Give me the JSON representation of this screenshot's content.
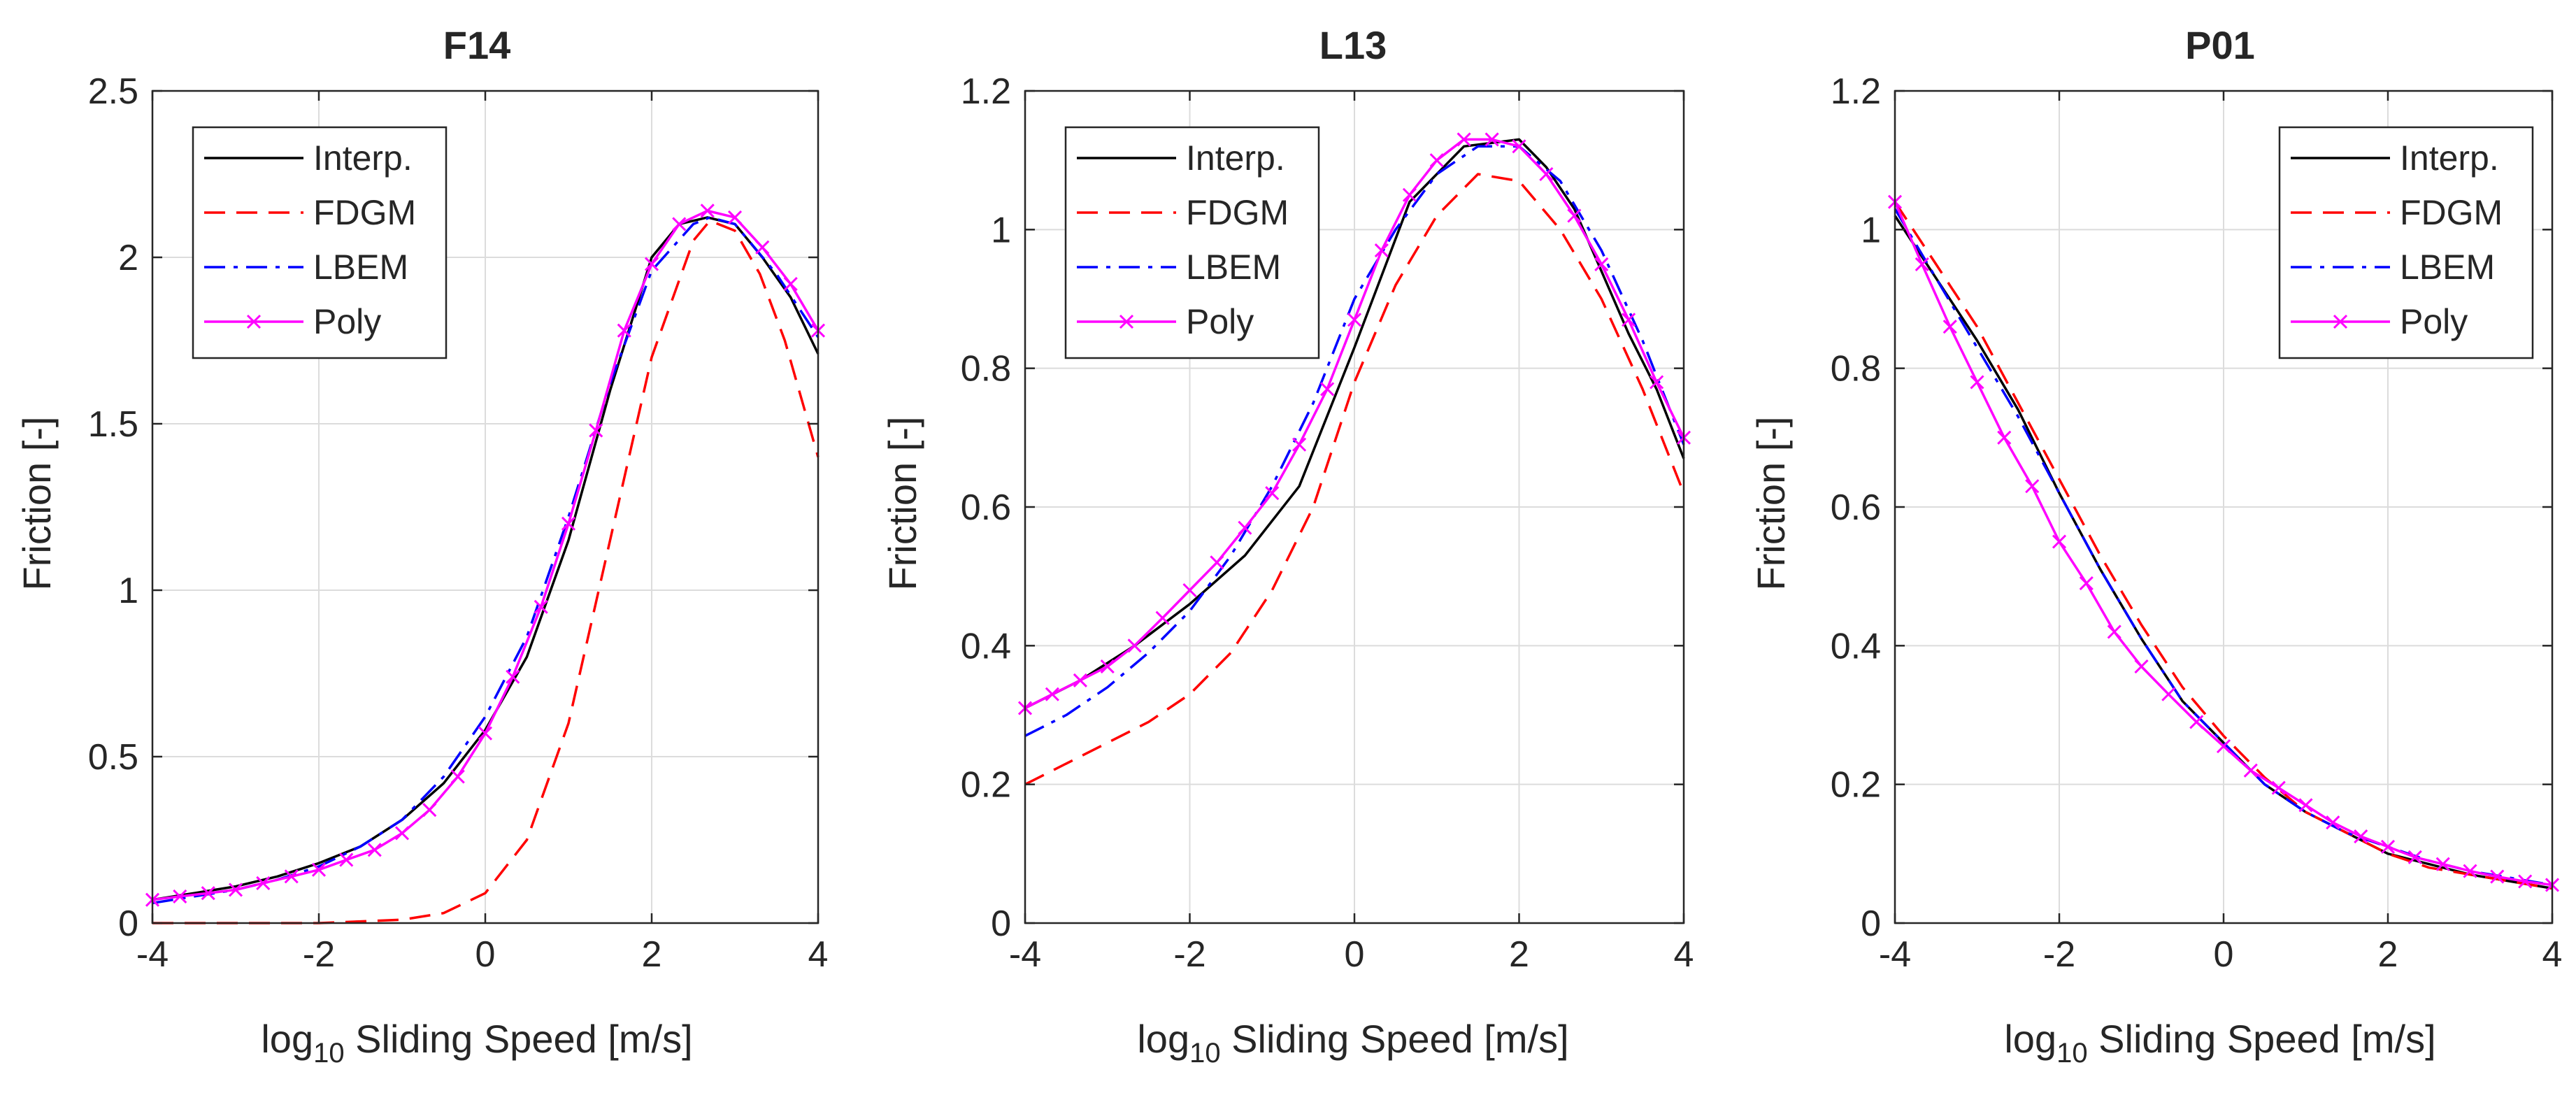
{
  "chart_data": [
    {
      "type": "line",
      "title": "F14",
      "xlabel_prefix": "log",
      "xlabel_sub": "10",
      "xlabel_suffix": " Sliding Speed [m/s]",
      "ylabel": "Friction [-]",
      "xlim": [
        -4,
        4
      ],
      "ylim": [
        0,
        2.5
      ],
      "xticks": [
        -4,
        -2,
        0,
        2,
        4
      ],
      "yticks": [
        0,
        0.5,
        1,
        1.5,
        2,
        2.5
      ],
      "xtick_labels": [
        "-4",
        "-2",
        "0",
        "2",
        "4"
      ],
      "ytick_labels": [
        "0",
        "0.5",
        "1",
        "1.5",
        "2",
        "2.5"
      ],
      "grid": true,
      "legend_position": "top-left",
      "series": [
        {
          "name": "Interp.",
          "color": "#000000",
          "dash": "solid",
          "marker": "none",
          "x": [
            -4,
            -3.5,
            -3,
            -2.5,
            -2,
            -1.5,
            -1,
            -0.5,
            0,
            0.5,
            1,
            1.5,
            2,
            2.33,
            2.67,
            3,
            3.33,
            3.67,
            4
          ],
          "y": [
            0.07,
            0.09,
            0.11,
            0.14,
            0.18,
            0.23,
            0.31,
            0.42,
            0.58,
            0.8,
            1.15,
            1.6,
            2.0,
            2.1,
            2.12,
            2.1,
            2.0,
            1.88,
            1.71
          ]
        },
        {
          "name": "FDGM",
          "color": "#ff0000",
          "dash": "dashed",
          "marker": "none",
          "x": [
            -4,
            -3,
            -2,
            -1.5,
            -1,
            -0.5,
            0,
            0.5,
            1,
            1.5,
            2,
            2.5,
            2.7,
            3,
            3.3,
            3.6,
            4
          ],
          "y": [
            0.0,
            0.0,
            0.0,
            0.005,
            0.01,
            0.03,
            0.09,
            0.25,
            0.6,
            1.15,
            1.7,
            2.05,
            2.11,
            2.08,
            1.95,
            1.75,
            1.4
          ]
        },
        {
          "name": "LBEM",
          "color": "#0000ff",
          "dash": "dashdot",
          "marker": "none",
          "x": [
            -4,
            -3.5,
            -3,
            -2.5,
            -2,
            -1.5,
            -1,
            -0.5,
            0,
            0.5,
            1,
            1.5,
            2,
            2.5,
            2.7,
            3,
            3.5,
            4
          ],
          "y": [
            0.06,
            0.08,
            0.1,
            0.13,
            0.17,
            0.23,
            0.31,
            0.44,
            0.62,
            0.86,
            1.22,
            1.62,
            1.96,
            2.1,
            2.12,
            2.1,
            1.95,
            1.76
          ]
        },
        {
          "name": "Poly",
          "color": "#ff00ff",
          "dash": "solid",
          "marker": "x",
          "x": [
            -4,
            -3.67,
            -3.33,
            -3,
            -2.67,
            -2.33,
            -2,
            -1.67,
            -1.33,
            -1,
            -0.67,
            -0.33,
            0,
            0.33,
            0.67,
            1,
            1.33,
            1.67,
            2,
            2.33,
            2.67,
            3,
            3.33,
            3.67,
            4
          ],
          "y": [
            0.07,
            0.08,
            0.09,
            0.1,
            0.12,
            0.14,
            0.16,
            0.19,
            0.22,
            0.27,
            0.34,
            0.44,
            0.57,
            0.74,
            0.95,
            1.2,
            1.48,
            1.78,
            1.98,
            2.1,
            2.14,
            2.12,
            2.03,
            1.92,
            1.78
          ]
        }
      ]
    },
    {
      "type": "line",
      "title": "L13",
      "xlabel_prefix": "log",
      "xlabel_sub": "10",
      "xlabel_suffix": " Sliding Speed [m/s]",
      "ylabel": "Friction [-]",
      "xlim": [
        -4,
        4
      ],
      "ylim": [
        0,
        1.2
      ],
      "xticks": [
        -4,
        -2,
        0,
        2,
        4
      ],
      "yticks": [
        0,
        0.2,
        0.4,
        0.6,
        0.8,
        1,
        1.2
      ],
      "xtick_labels": [
        "-4",
        "-2",
        "0",
        "2",
        "4"
      ],
      "ytick_labels": [
        "0",
        "0.2",
        "0.4",
        "0.6",
        "0.8",
        "1",
        "1.2"
      ],
      "grid": true,
      "legend_position": "top-left",
      "series": [
        {
          "name": "Interp.",
          "color": "#000000",
          "dash": "solid",
          "marker": "none",
          "x": [
            -4,
            -3.33,
            -2.67,
            -2,
            -1.33,
            -0.67,
            0,
            0.67,
            1.33,
            2,
            2.33,
            2.67,
            3,
            3.33,
            3.67,
            4
          ],
          "y": [
            0.31,
            0.35,
            0.4,
            0.46,
            0.53,
            0.63,
            0.83,
            1.04,
            1.12,
            1.13,
            1.09,
            1.03,
            0.94,
            0.85,
            0.77,
            0.67
          ]
        },
        {
          "name": "FDGM",
          "color": "#ff0000",
          "dash": "dashed",
          "marker": "none",
          "x": [
            -4,
            -3.5,
            -3,
            -2.5,
            -2,
            -1.5,
            -1,
            -0.5,
            0,
            0.5,
            1,
            1.5,
            2,
            2.5,
            3,
            3.5,
            4
          ],
          "y": [
            0.2,
            0.23,
            0.26,
            0.29,
            0.33,
            0.39,
            0.48,
            0.6,
            0.78,
            0.92,
            1.02,
            1.08,
            1.07,
            1.0,
            0.9,
            0.77,
            0.62
          ]
        },
        {
          "name": "LBEM",
          "color": "#0000ff",
          "dash": "dashdot",
          "marker": "none",
          "x": [
            -4,
            -3.5,
            -3,
            -2.5,
            -2,
            -1.5,
            -1,
            -0.5,
            0,
            0.5,
            1,
            1.5,
            2,
            2.5,
            3,
            3.5,
            4
          ],
          "y": [
            0.27,
            0.3,
            0.34,
            0.39,
            0.45,
            0.53,
            0.63,
            0.75,
            0.9,
            1.0,
            1.08,
            1.12,
            1.12,
            1.07,
            0.97,
            0.84,
            0.69
          ]
        },
        {
          "name": "Poly",
          "color": "#ff00ff",
          "dash": "solid",
          "marker": "x",
          "x": [
            -4,
            -3.67,
            -3.33,
            -3,
            -2.67,
            -2.33,
            -2,
            -1.67,
            -1.33,
            -1,
            -0.67,
            -0.33,
            0,
            0.33,
            0.67,
            1,
            1.33,
            1.67,
            2,
            2.33,
            2.67,
            3,
            3.33,
            3.67,
            4
          ],
          "y": [
            0.31,
            0.33,
            0.35,
            0.37,
            0.4,
            0.44,
            0.48,
            0.52,
            0.57,
            0.62,
            0.69,
            0.77,
            0.87,
            0.97,
            1.05,
            1.1,
            1.13,
            1.13,
            1.12,
            1.08,
            1.02,
            0.95,
            0.87,
            0.78,
            0.7
          ]
        }
      ]
    },
    {
      "type": "line",
      "title": "P01",
      "xlabel_prefix": "log",
      "xlabel_sub": "10",
      "xlabel_suffix": " Sliding Speed [m/s]",
      "ylabel": "Friction [-]",
      "xlim": [
        -4,
        4
      ],
      "ylim": [
        0,
        1.2
      ],
      "xticks": [
        -4,
        -2,
        0,
        2,
        4
      ],
      "yticks": [
        0,
        0.2,
        0.4,
        0.6,
        0.8,
        1,
        1.2
      ],
      "xtick_labels": [
        "-4",
        "-2",
        "0",
        "2",
        "4"
      ],
      "ytick_labels": [
        "0",
        "0.2",
        "0.4",
        "0.6",
        "0.8",
        "1",
        "1.2"
      ],
      "grid": true,
      "legend_position": "top-right",
      "series": [
        {
          "name": "Interp.",
          "color": "#000000",
          "dash": "solid",
          "marker": "none",
          "x": [
            -4,
            -3.5,
            -3,
            -2.5,
            -2,
            -1.5,
            -1,
            -0.5,
            0,
            0.5,
            1,
            1.5,
            2,
            2.5,
            3,
            3.5,
            4
          ],
          "y": [
            1.02,
            0.93,
            0.84,
            0.74,
            0.62,
            0.51,
            0.41,
            0.32,
            0.26,
            0.2,
            0.16,
            0.13,
            0.1,
            0.085,
            0.07,
            0.06,
            0.05
          ]
        },
        {
          "name": "FDGM",
          "color": "#ff0000",
          "dash": "dashed",
          "marker": "none",
          "x": [
            -4,
            -3.5,
            -3,
            -2.5,
            -2,
            -1.5,
            -1,
            -0.5,
            0,
            0.5,
            1,
            1.5,
            2,
            2.5,
            3,
            3.5,
            4
          ],
          "y": [
            1.04,
            0.95,
            0.86,
            0.75,
            0.64,
            0.53,
            0.43,
            0.34,
            0.27,
            0.21,
            0.16,
            0.13,
            0.1,
            0.08,
            0.07,
            0.06,
            0.05
          ]
        },
        {
          "name": "LBEM",
          "color": "#0000ff",
          "dash": "dashdot",
          "marker": "none",
          "x": [
            -4,
            -3.5,
            -3,
            -2.5,
            -2,
            -1.5,
            -1,
            -0.5,
            0,
            0.5,
            1,
            1.5,
            2,
            2.5,
            3,
            3.5,
            4
          ],
          "y": [
            1.03,
            0.93,
            0.83,
            0.73,
            0.62,
            0.51,
            0.41,
            0.32,
            0.26,
            0.2,
            0.16,
            0.13,
            0.11,
            0.09,
            0.075,
            0.065,
            0.055
          ]
        },
        {
          "name": "Poly",
          "color": "#ff00ff",
          "dash": "solid",
          "marker": "x",
          "x": [
            -4,
            -3.67,
            -3.33,
            -3,
            -2.67,
            -2.33,
            -2,
            -1.67,
            -1.33,
            -1,
            -0.67,
            -0.33,
            0,
            0.33,
            0.67,
            1,
            1.33,
            1.67,
            2,
            2.33,
            2.67,
            3,
            3.33,
            3.67,
            4
          ],
          "y": [
            1.04,
            0.95,
            0.86,
            0.78,
            0.7,
            0.63,
            0.55,
            0.49,
            0.42,
            0.37,
            0.33,
            0.29,
            0.255,
            0.22,
            0.195,
            0.17,
            0.145,
            0.125,
            0.11,
            0.095,
            0.085,
            0.075,
            0.067,
            0.06,
            0.055
          ]
        }
      ]
    }
  ]
}
